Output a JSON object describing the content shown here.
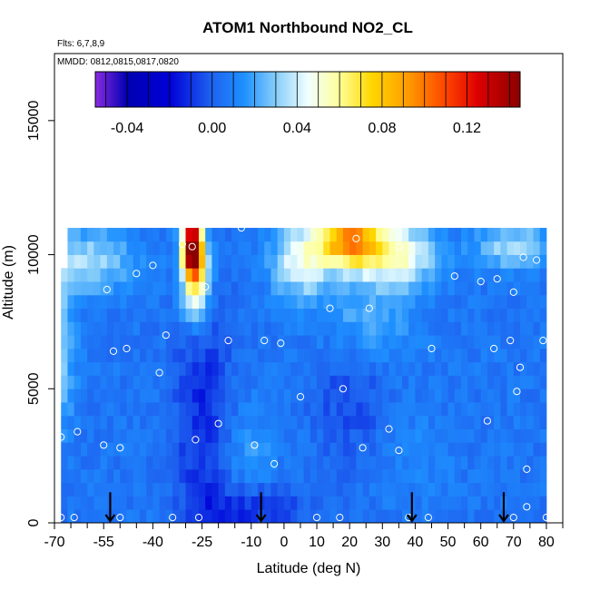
{
  "chart_data": {
    "type": "heatmap",
    "title": "ATOM1 Northbound NO2_CL",
    "flights_note": "Flts: 6,7,8,9",
    "dates_note": "MMDD: 0812,0815,0817,0820",
    "xlabel": "Latitude (deg N)",
    "ylabel": "Altitude (m)",
    "xlim": [
      -70,
      85
    ],
    "ylim": [
      0,
      17500
    ],
    "x_ticks": [
      -70,
      -55,
      -40,
      -25,
      -10,
      0,
      10,
      20,
      30,
      40,
      50,
      60,
      70,
      80
    ],
    "x_minor_ticks": [
      -65,
      -60,
      -50,
      -45,
      -35,
      -30,
      -20,
      -15,
      -5,
      5,
      15,
      25,
      35,
      45,
      55,
      65,
      75,
      85
    ],
    "y_ticks": [
      0,
      5000,
      10000,
      15000
    ],
    "colorbar": {
      "min": -0.055,
      "max": 0.145,
      "tick_values": [
        -0.04,
        0.0,
        0.04,
        0.08,
        0.12
      ],
      "tick_labels": [
        "-0.04",
        "0.00",
        "0.04",
        "0.08",
        "0.12"
      ],
      "divisions": [
        -0.05,
        -0.04,
        -0.03,
        -0.02,
        -0.01,
        0.0,
        0.01,
        0.02,
        0.03,
        0.04,
        0.05,
        0.06,
        0.07,
        0.08,
        0.09,
        0.1,
        0.11,
        0.12,
        0.13,
        0.14
      ],
      "colors": [
        {
          "v": -0.055,
          "c": "#8a2be2"
        },
        {
          "v": -0.04,
          "c": "#0000b0"
        },
        {
          "v": -0.02,
          "c": "#0000d8"
        },
        {
          "v": 0.0,
          "c": "#1e64f0"
        },
        {
          "v": 0.015,
          "c": "#1e90ff"
        },
        {
          "v": 0.03,
          "c": "#87cefa"
        },
        {
          "v": 0.045,
          "c": "#f0ffff"
        },
        {
          "v": 0.06,
          "c": "#ffff99"
        },
        {
          "v": 0.075,
          "c": "#ffd700"
        },
        {
          "v": 0.09,
          "c": "#ffa500"
        },
        {
          "v": 0.11,
          "c": "#ff4500"
        },
        {
          "v": 0.125,
          "c": "#dd0000"
        },
        {
          "v": 0.145,
          "c": "#8b0000"
        }
      ]
    },
    "heatmap": {
      "x_range": [
        -68,
        80
      ],
      "y_range": [
        0,
        11000
      ],
      "x_step": 2,
      "y_step": 500,
      "background_value": 0.006,
      "features": [
        {
          "lat": -28,
          "alt": 10300,
          "value": 0.14,
          "sx": 2,
          "sy": 700
        },
        {
          "lat": -27,
          "alt": 9200,
          "value": 0.07,
          "sx": 3,
          "sy": 1200
        },
        {
          "lat": 20,
          "alt": 10500,
          "value": 0.095,
          "sx": 7,
          "sy": 700
        },
        {
          "lat": 35,
          "alt": 10000,
          "value": 0.05,
          "sx": 8,
          "sy": 800
        },
        {
          "lat": 5,
          "alt": 9800,
          "value": 0.045,
          "sx": 6,
          "sy": 1000
        },
        {
          "lat": -60,
          "alt": 9800,
          "value": 0.035,
          "sx": 10,
          "sy": 800
        },
        {
          "lat": 70,
          "alt": 10300,
          "value": 0.035,
          "sx": 8,
          "sy": 600
        },
        {
          "lat": 25,
          "alt": 7600,
          "value": 0.025,
          "sx": 10,
          "sy": 1200
        },
        {
          "lat": -68,
          "alt": 6500,
          "value": 0.03,
          "sx": 3,
          "sy": 2000
        },
        {
          "lat": -25,
          "alt": 4000,
          "value": -0.012,
          "sx": 6,
          "sy": 3500
        },
        {
          "lat": -10,
          "alt": 500,
          "value": -0.012,
          "sx": 12,
          "sy": 600
        },
        {
          "lat": 20,
          "alt": 5000,
          "value": -0.006,
          "sx": 8,
          "sy": 2000
        },
        {
          "lat": 40,
          "alt": 2500,
          "value": 0.012,
          "sx": 8,
          "sy": 1200
        },
        {
          "lat": -10,
          "alt": 2700,
          "value": 0.016,
          "sx": 6,
          "sy": 1200
        }
      ]
    },
    "observation_points": [
      [
        -68,
        200
      ],
      [
        -68,
        3200
      ],
      [
        -63,
        3400
      ],
      [
        -64,
        200
      ],
      [
        -55,
        2900
      ],
      [
        -54,
        8700
      ],
      [
        -52,
        6400
      ],
      [
        -50,
        2800
      ],
      [
        -50,
        200
      ],
      [
        -48,
        6500
      ],
      [
        -45,
        9300
      ],
      [
        -40,
        9600
      ],
      [
        -38,
        5600
      ],
      [
        -36,
        7000
      ],
      [
        -34,
        200
      ],
      [
        -31,
        10400
      ],
      [
        -28,
        10300
      ],
      [
        -27,
        3100
      ],
      [
        -26,
        200
      ],
      [
        -24,
        8800
      ],
      [
        -20,
        3700
      ],
      [
        -17,
        6800
      ],
      [
        -13,
        11000
      ],
      [
        -9,
        2900
      ],
      [
        -6,
        6800
      ],
      [
        -3,
        2200
      ],
      [
        -1,
        6700
      ],
      [
        5,
        4700
      ],
      [
        10,
        200
      ],
      [
        14,
        8000
      ],
      [
        17,
        200
      ],
      [
        18,
        5000
      ],
      [
        22,
        10600
      ],
      [
        24,
        2800
      ],
      [
        26,
        8000
      ],
      [
        32,
        3500
      ],
      [
        35,
        2700
      ],
      [
        35,
        10300
      ],
      [
        38,
        200
      ],
      [
        44,
        200
      ],
      [
        45,
        6500
      ],
      [
        52,
        9200
      ],
      [
        60,
        9000
      ],
      [
        62,
        3800
      ],
      [
        64,
        6500
      ],
      [
        65,
        9100
      ],
      [
        69,
        6800
      ],
      [
        70,
        8600
      ],
      [
        70,
        200
      ],
      [
        71,
        4900
      ],
      [
        72,
        5800
      ],
      [
        73,
        9900
      ],
      [
        74,
        2000
      ],
      [
        74,
        600
      ],
      [
        77,
        9800
      ],
      [
        79,
        6800
      ],
      [
        80,
        200
      ]
    ],
    "flight_markers_lat": [
      -53,
      -7,
      39,
      67
    ],
    "grid": false,
    "legend": "colorbar at top inside plot"
  }
}
